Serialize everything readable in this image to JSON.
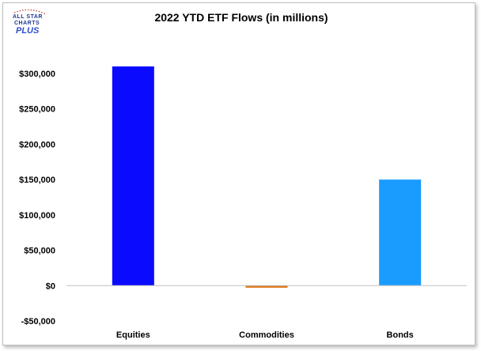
{
  "logo": {
    "line1": "ALL STAR",
    "line2": "CHARTS",
    "line3": "PLUS",
    "colors": {
      "text": "#1f3a93",
      "accent": "#c0392b"
    }
  },
  "chart_data": {
    "type": "bar",
    "title": "2022 YTD ETF Flows (in millions)",
    "categories": [
      "Equities",
      "Commodities",
      "Bonds"
    ],
    "values": [
      310000,
      -3000,
      150000
    ],
    "colors": [
      "#0a0aff",
      "#e07b1c",
      "#1a9cff"
    ],
    "ylim": [
      -50000,
      300000
    ],
    "yticks": [
      300000,
      250000,
      200000,
      150000,
      100000,
      50000,
      0,
      -50000
    ],
    "ytick_labels": [
      "$300,000",
      "$250,000",
      "$200,000",
      "$150,000",
      "$100,000",
      "$50,000",
      "$0",
      "-$50,000"
    ],
    "grid": false,
    "legend": false
  }
}
